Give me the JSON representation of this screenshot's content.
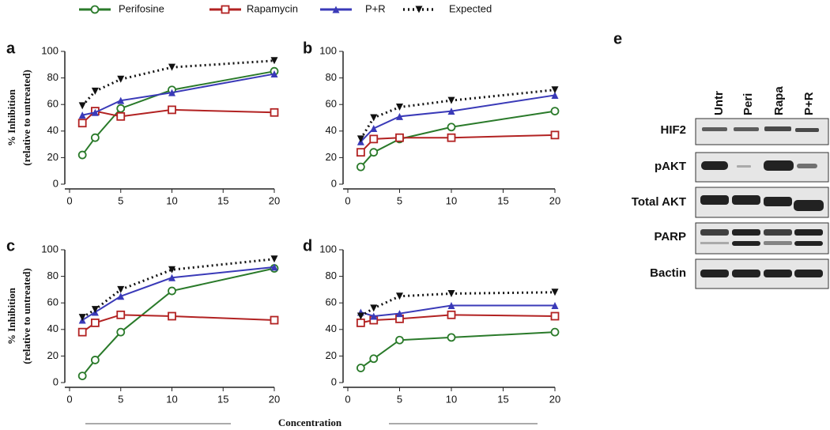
{
  "chart_data": [
    {
      "type": "line",
      "label": "a",
      "ylabel": [
        "% Inhibition",
        "(relative to untreated)"
      ],
      "x": [
        1.25,
        2.5,
        5,
        10,
        20
      ],
      "xlim": [
        0,
        20
      ],
      "xticks": [
        0,
        5,
        10,
        15,
        20
      ],
      "ylim": [
        0,
        100
      ],
      "yticks": [
        0,
        20,
        40,
        60,
        80,
        100
      ],
      "series": [
        {
          "name": "Perifosine",
          "color": "#2a7a2a",
          "marker": "circle",
          "dash": "solid",
          "values": [
            22,
            35,
            57,
            71,
            85
          ]
        },
        {
          "name": "Rapamycin",
          "color": "#b22222",
          "marker": "square",
          "dash": "solid",
          "values": [
            46,
            55,
            51,
            56,
            54
          ]
        },
        {
          "name": "P+R",
          "color": "#3a3ab8",
          "marker": "triangle",
          "dash": "solid",
          "values": [
            52,
            54,
            63,
            69,
            83
          ]
        },
        {
          "name": "Expected",
          "color": "#111111",
          "marker": "triangle-down",
          "dash": "dotted",
          "values": [
            59,
            70,
            79,
            88,
            93
          ]
        }
      ]
    },
    {
      "type": "line",
      "label": "b",
      "x": [
        1.25,
        2.5,
        5,
        10,
        20
      ],
      "xlim": [
        0,
        20
      ],
      "xticks": [
        0,
        5,
        10,
        15,
        20
      ],
      "ylim": [
        0,
        100
      ],
      "yticks": [
        0,
        20,
        40,
        60,
        80,
        100
      ],
      "series": [
        {
          "values": [
            13,
            24,
            34,
            43,
            55
          ]
        },
        {
          "values": [
            24,
            34,
            35,
            35,
            37
          ]
        },
        {
          "values": [
            32,
            42,
            51,
            55,
            67
          ]
        },
        {
          "values": [
            34,
            50,
            58,
            63,
            71
          ]
        }
      ]
    },
    {
      "type": "line",
      "label": "c",
      "ylabel": [
        "% Inhibition",
        "(relative to untreated)"
      ],
      "x": [
        1.25,
        2.5,
        5,
        10,
        20
      ],
      "xlim": [
        0,
        20
      ],
      "xticks": [
        0,
        5,
        10,
        15,
        20
      ],
      "ylim": [
        0,
        100
      ],
      "yticks": [
        0,
        20,
        40,
        60,
        80,
        100
      ],
      "series": [
        {
          "values": [
            5,
            17,
            38,
            69,
            86
          ]
        },
        {
          "values": [
            38,
            45,
            51,
            50,
            47
          ]
        },
        {
          "values": [
            47,
            53,
            65,
            79,
            87
          ]
        },
        {
          "values": [
            49,
            55,
            70,
            85,
            93
          ]
        }
      ]
    },
    {
      "type": "line",
      "label": "d",
      "x": [
        1.25,
        2.5,
        5,
        10,
        20
      ],
      "xlim": [
        0,
        20
      ],
      "xticks": [
        0,
        5,
        10,
        15,
        20
      ],
      "ylim": [
        0,
        100
      ],
      "yticks": [
        0,
        20,
        40,
        60,
        80,
        100
      ],
      "series": [
        {
          "values": [
            11,
            18,
            32,
            34,
            38
          ]
        },
        {
          "values": [
            45,
            47,
            48,
            51,
            50
          ]
        },
        {
          "values": [
            53,
            50,
            52,
            58,
            58
          ]
        },
        {
          "values": [
            50,
            56,
            65,
            67,
            68
          ]
        }
      ]
    }
  ],
  "xlabel": "Concentration",
  "blot": {
    "label": "e",
    "lanes": [
      "Untr",
      "Peri",
      "Rapa",
      "P+R"
    ],
    "rows": [
      "HIF2",
      "pAKT",
      "Total AKT",
      "PARP",
      "Bactin"
    ]
  }
}
